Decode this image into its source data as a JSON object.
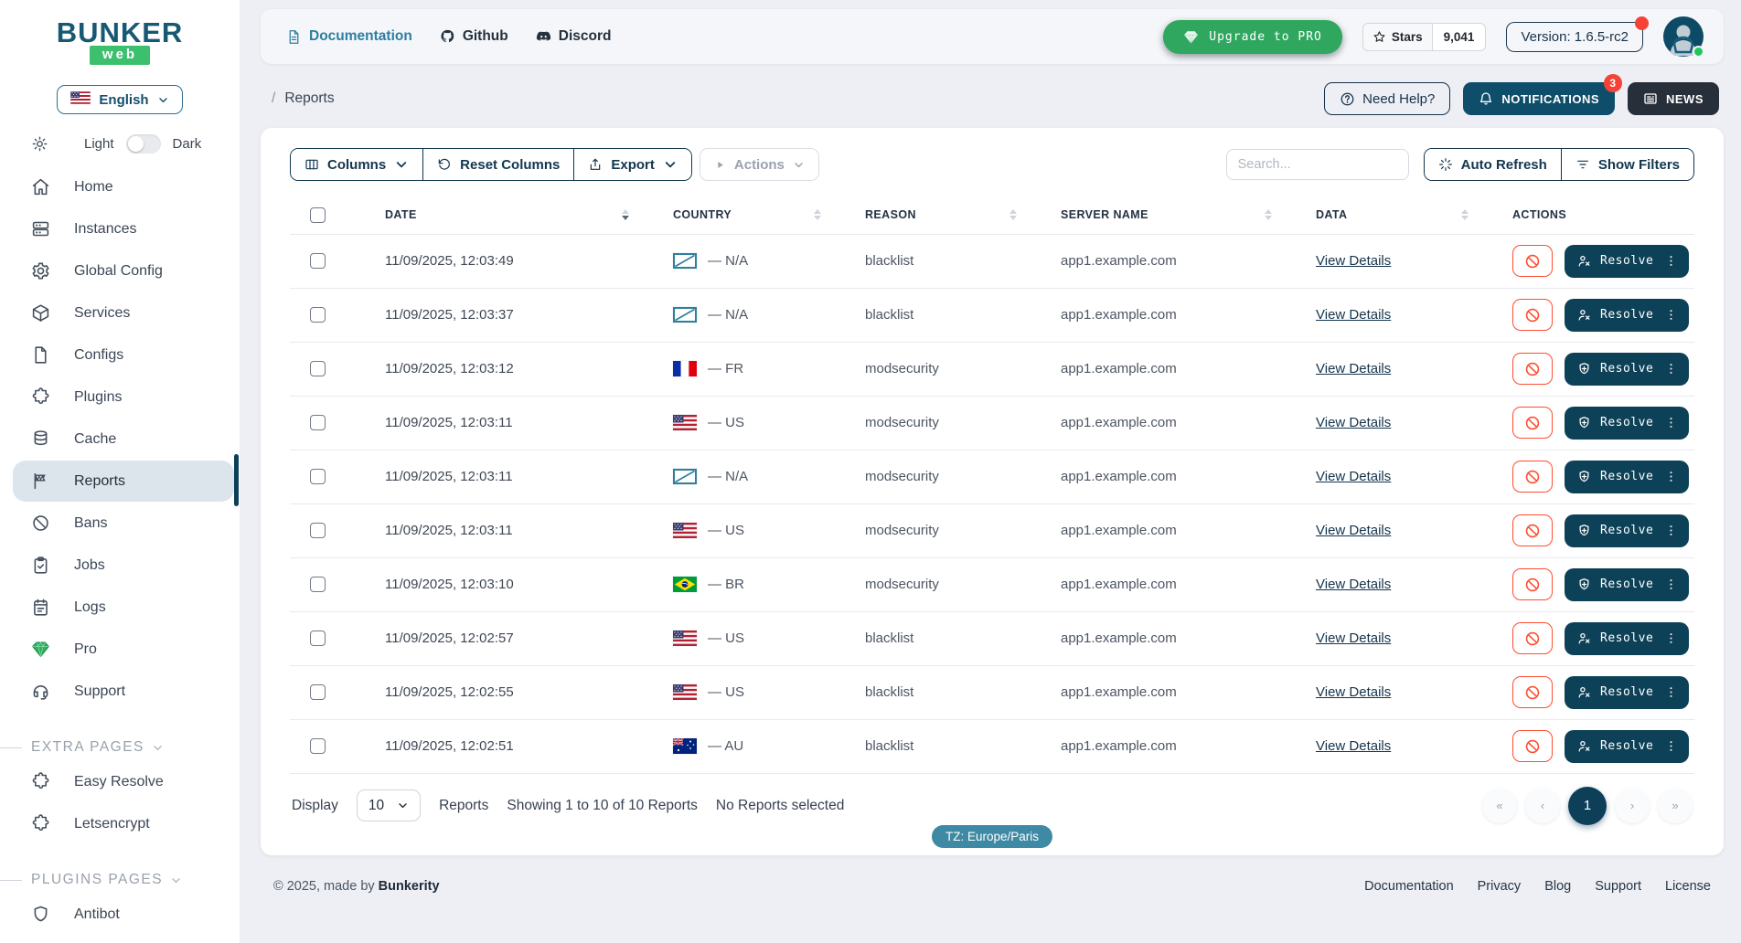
{
  "colors": {
    "navy": "#0d4157",
    "teal_link": "#2c7fa0",
    "green": "#2fa75f",
    "danger": "#ff4d30",
    "badge_red": "#f44336",
    "active_bg": "#dde5ec",
    "tz_pill": "#3e89a3"
  },
  "sidebar": {
    "logo": {
      "title": "BUNKER",
      "subtitle": "web"
    },
    "language": {
      "label": "English"
    },
    "theme": {
      "light": "Light",
      "dark": "Dark"
    },
    "nav": [
      {
        "label": "Home",
        "icon": "home"
      },
      {
        "label": "Instances",
        "icon": "servers"
      },
      {
        "label": "Global Config",
        "icon": "gear"
      },
      {
        "label": "Services",
        "icon": "cube"
      },
      {
        "label": "Configs",
        "icon": "file"
      },
      {
        "label": "Plugins",
        "icon": "puzzle"
      },
      {
        "label": "Cache",
        "icon": "database"
      },
      {
        "label": "Reports",
        "icon": "flag-checkered",
        "active": true
      },
      {
        "label": "Bans",
        "icon": "ban"
      },
      {
        "label": "Jobs",
        "icon": "clipboard-check"
      },
      {
        "label": "Logs",
        "icon": "notepad"
      },
      {
        "label": "Pro",
        "icon": "gem"
      },
      {
        "label": "Support",
        "icon": "headset"
      }
    ],
    "sections": [
      {
        "title": "EXTRA PAGES",
        "items": [
          {
            "label": "Easy Resolve",
            "icon": "puzzle"
          },
          {
            "label": "Letsencrypt",
            "icon": "puzzle"
          }
        ]
      },
      {
        "title": "PLUGINS PAGES",
        "items": [
          {
            "label": "Antibot",
            "icon": "shield"
          }
        ]
      }
    ]
  },
  "topbar": {
    "links": [
      {
        "label": "Documentation",
        "icon": "doc",
        "style": "teal"
      },
      {
        "label": "Github",
        "icon": "github",
        "style": "dark"
      },
      {
        "label": "Discord",
        "icon": "discord",
        "style": "dark"
      }
    ],
    "upgrade_label": "Upgrade to PRO",
    "stars_label": "Stars",
    "stars_count": "9,041",
    "version_label": "Version: 1.6.5-rc2"
  },
  "breadcrumb": {
    "separator": "/",
    "page": "Reports"
  },
  "header_actions": {
    "help": "Need Help?",
    "notifications": "NOTIFICATIONS",
    "notifications_badge": "3",
    "news": "NEWS"
  },
  "toolbar": {
    "columns": "Columns",
    "reset": "Reset Columns",
    "export": "Export",
    "actions": "Actions",
    "search_placeholder": "Search...",
    "auto_refresh": "Auto Refresh",
    "show_filters": "Show Filters"
  },
  "table": {
    "headers": [
      "DATE",
      "COUNTRY",
      "REASON",
      "SERVER NAME",
      "DATA",
      "ACTIONS"
    ],
    "sorted_column": "DATE",
    "view_details_label": "View Details",
    "resolve_label": "Resolve",
    "rows": [
      {
        "date": "11/09/2025, 12:03:49",
        "country_code": "na",
        "country_label": "— N/A",
        "reason": "blacklist",
        "server": "app1.example.com",
        "resolve_icon": "user-x"
      },
      {
        "date": "11/09/2025, 12:03:37",
        "country_code": "na",
        "country_label": "— N/A",
        "reason": "blacklist",
        "server": "app1.example.com",
        "resolve_icon": "user-x"
      },
      {
        "date": "11/09/2025, 12:03:12",
        "country_code": "fr",
        "country_label": "— FR",
        "reason": "modsecurity",
        "server": "app1.example.com",
        "resolve_icon": "shield-plus"
      },
      {
        "date": "11/09/2025, 12:03:11",
        "country_code": "us",
        "country_label": "— US",
        "reason": "modsecurity",
        "server": "app1.example.com",
        "resolve_icon": "shield-plus"
      },
      {
        "date": "11/09/2025, 12:03:11",
        "country_code": "na",
        "country_label": "— N/A",
        "reason": "modsecurity",
        "server": "app1.example.com",
        "resolve_icon": "shield-plus"
      },
      {
        "date": "11/09/2025, 12:03:11",
        "country_code": "us",
        "country_label": "— US",
        "reason": "modsecurity",
        "server": "app1.example.com",
        "resolve_icon": "shield-plus"
      },
      {
        "date": "11/09/2025, 12:03:10",
        "country_code": "br",
        "country_label": "— BR",
        "reason": "modsecurity",
        "server": "app1.example.com",
        "resolve_icon": "shield-plus"
      },
      {
        "date": "11/09/2025, 12:02:57",
        "country_code": "us",
        "country_label": "— US",
        "reason": "blacklist",
        "server": "app1.example.com",
        "resolve_icon": "user-x"
      },
      {
        "date": "11/09/2025, 12:02:55",
        "country_code": "us",
        "country_label": "— US",
        "reason": "blacklist",
        "server": "app1.example.com",
        "resolve_icon": "user-x"
      },
      {
        "date": "11/09/2025, 12:02:51",
        "country_code": "au",
        "country_label": "— AU",
        "reason": "blacklist",
        "server": "app1.example.com",
        "resolve_icon": "user-x"
      }
    ]
  },
  "table_footer": {
    "display_label": "Display",
    "page_size": "10",
    "unit_label": "Reports",
    "showing_text": "Showing 1 to 10 of 10 Reports",
    "selected_text": "No Reports selected",
    "pagination": {
      "first": "«",
      "prev": "‹",
      "current": "1",
      "next": "›",
      "last": "»"
    },
    "tz_badge": "TZ: Europe/Paris"
  },
  "footer": {
    "copyright_prefix": "© 2025, made by",
    "brand": "Bunkerity",
    "links": [
      "Documentation",
      "Privacy",
      "Blog",
      "Support",
      "License"
    ]
  }
}
